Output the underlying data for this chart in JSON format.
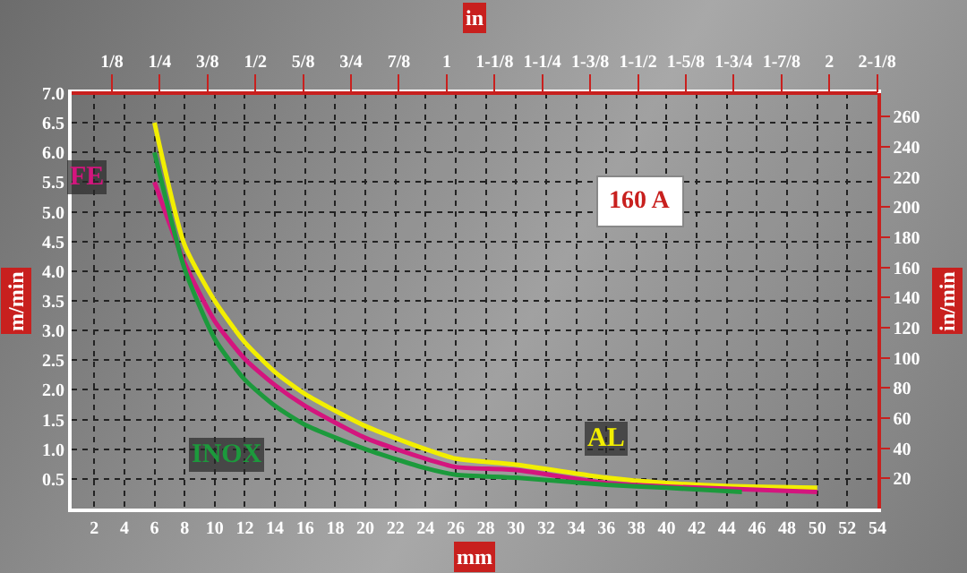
{
  "chart_data": {
    "type": "line",
    "xlabel": "mm",
    "x2label": "in",
    "ylabel": "m/min",
    "y2label": "in/min",
    "annotations": [
      "160 A"
    ],
    "xlim": [
      0.5,
      54
    ],
    "xticks": [
      2,
      4,
      6,
      8,
      10,
      12,
      14,
      16,
      18,
      20,
      22,
      24,
      26,
      28,
      30,
      32,
      34,
      36,
      38,
      40,
      42,
      44,
      46,
      48,
      50,
      52,
      54
    ],
    "x2lim": [
      0.0197,
      2.126
    ],
    "x2ticks": [
      {
        "value": 0.125,
        "label": "1/8"
      },
      {
        "value": 0.25,
        "label": "1/4"
      },
      {
        "value": 0.375,
        "label": "3/8"
      },
      {
        "value": 0.5,
        "label": "1/2"
      },
      {
        "value": 0.625,
        "label": "5/8"
      },
      {
        "value": 0.75,
        "label": "3/4"
      },
      {
        "value": 0.875,
        "label": "7/8"
      },
      {
        "value": 1,
        "label": "1"
      },
      {
        "value": 1.125,
        "label": "1-1/8"
      },
      {
        "value": 1.25,
        "label": "1-1/4"
      },
      {
        "value": 1.375,
        "label": "1-3/8"
      },
      {
        "value": 1.5,
        "label": "1-1/2"
      },
      {
        "value": 1.625,
        "label": "1-5/8"
      },
      {
        "value": 1.75,
        "label": "1-3/4"
      },
      {
        "value": 1.875,
        "label": "1-7/8"
      },
      {
        "value": 2,
        "label": "2"
      },
      {
        "value": 2.125,
        "label": "2-1/8"
      }
    ],
    "ylim": [
      0,
      7
    ],
    "yticks": [
      {
        "value": 0.5,
        "label": "0.5"
      },
      {
        "value": 1,
        "label": "1.0"
      },
      {
        "value": 1.5,
        "label": "1.5"
      },
      {
        "value": 2,
        "label": "2.0"
      },
      {
        "value": 2.5,
        "label": "2.5"
      },
      {
        "value": 3,
        "label": "3.0"
      },
      {
        "value": 3.5,
        "label": "3.5"
      },
      {
        "value": 4,
        "label": "4.0"
      },
      {
        "value": 4.5,
        "label": "4.5"
      },
      {
        "value": 5,
        "label": "5.0"
      },
      {
        "value": 5.5,
        "label": "5.5"
      },
      {
        "value": 6,
        "label": "6.0"
      },
      {
        "value": 6.5,
        "label": "6.5"
      },
      {
        "value": 7,
        "label": "7.0"
      }
    ],
    "y2lim": [
      0,
      275.6
    ],
    "y2ticks": [
      20,
      40,
      60,
      80,
      100,
      120,
      140,
      160,
      180,
      200,
      220,
      240,
      260
    ],
    "grid": true,
    "legend": false,
    "marker": "none",
    "line_style": "solid",
    "series": [
      {
        "name": "AL",
        "color": "#f2ee00",
        "x": [
          6,
          8,
          10,
          12,
          14,
          16,
          20,
          24,
          26,
          30,
          36,
          40,
          44,
          50
        ],
        "values": [
          6.5,
          4.44,
          3.5,
          2.8,
          2.3,
          1.93,
          1.39,
          1.0,
          0.84,
          0.74,
          0.52,
          0.43,
          0.38,
          0.35
        ]
      },
      {
        "name": "FE",
        "color": "#d4157e",
        "x": [
          6,
          8,
          10,
          12,
          14,
          16,
          20,
          24,
          26,
          30,
          36,
          40,
          50
        ],
        "values": [
          5.5,
          4.14,
          3.16,
          2.52,
          2.08,
          1.73,
          1.19,
          0.84,
          0.7,
          0.65,
          0.43,
          0.37,
          0.28
        ]
      },
      {
        "name": "INOX",
        "color": "#1c9a3c",
        "x": [
          6,
          8,
          10,
          12,
          14,
          16,
          20,
          24,
          26,
          30,
          36,
          40,
          45
        ],
        "values": [
          6.0,
          4.04,
          2.86,
          2.17,
          1.73,
          1.41,
          1.0,
          0.68,
          0.57,
          0.52,
          0.4,
          0.35,
          0.28
        ]
      }
    ]
  }
}
